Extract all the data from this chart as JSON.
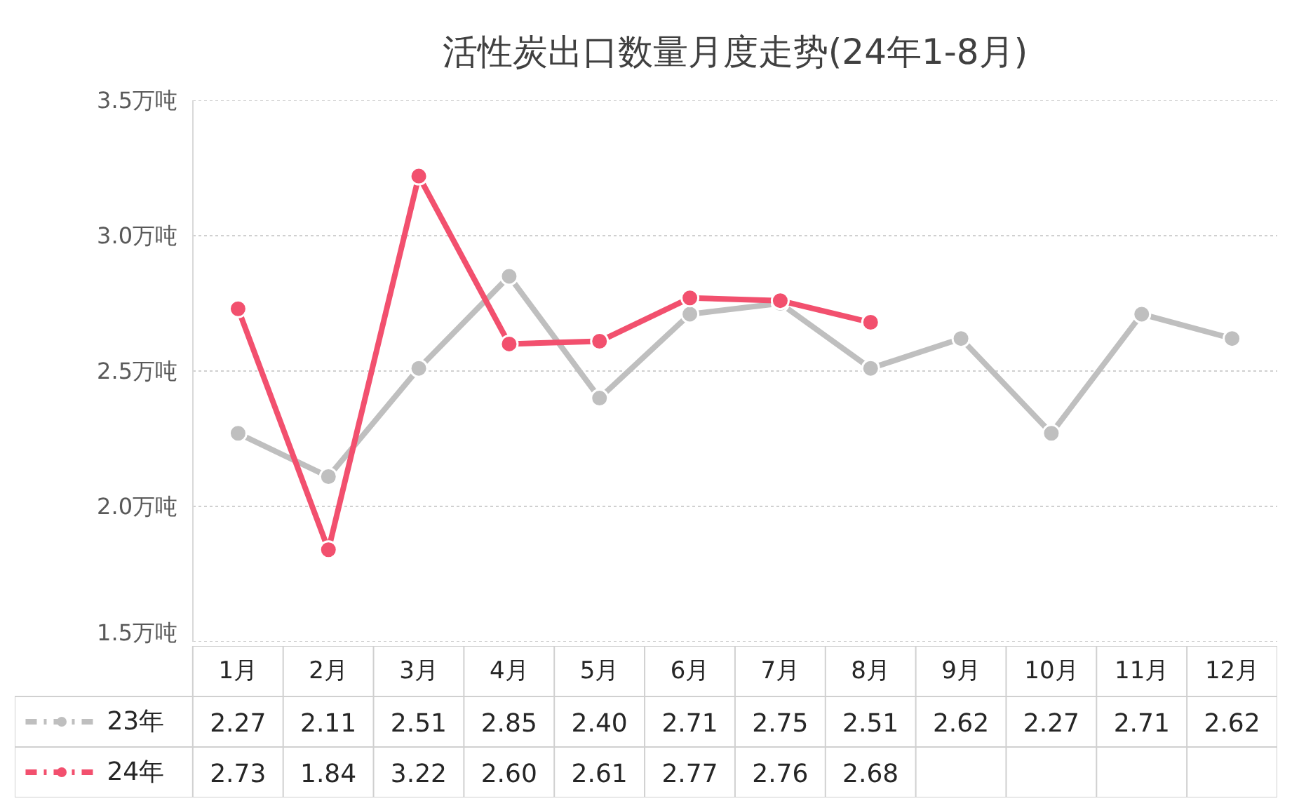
{
  "chart_data": {
    "type": "line",
    "title": "活性炭出口数量月度走势(24年1-8月)",
    "categories": [
      "1月",
      "2月",
      "3月",
      "4月",
      "5月",
      "6月",
      "7月",
      "8月",
      "9月",
      "10月",
      "11月",
      "12月"
    ],
    "series": [
      {
        "name": "23年",
        "color": "#bfbfbf",
        "values": [
          2.27,
          2.11,
          2.51,
          2.85,
          2.4,
          2.71,
          2.75,
          2.51,
          2.62,
          2.27,
          2.71,
          2.62
        ],
        "value_labels": [
          "2.27",
          "2.11",
          "2.51",
          "2.85",
          "2.40",
          "2.71",
          "2.75",
          "2.51",
          "2.62",
          "2.27",
          "2.71",
          "2.62"
        ]
      },
      {
        "name": "24年",
        "color": "#f2506e",
        "values": [
          2.73,
          1.84,
          3.22,
          2.6,
          2.61,
          2.77,
          2.76,
          2.68,
          null,
          null,
          null,
          null
        ],
        "value_labels": [
          "2.73",
          "1.84",
          "3.22",
          "2.60",
          "2.61",
          "2.77",
          "2.76",
          "2.68",
          null,
          null,
          null,
          null
        ]
      }
    ],
    "ylim": [
      1.5,
      3.5
    ],
    "yticks": [
      {
        "value": 1.5,
        "label": "1.5万吨"
      },
      {
        "value": 2.0,
        "label": "2.0万吨"
      },
      {
        "value": 2.5,
        "label": "2.5万吨"
      },
      {
        "value": 3.0,
        "label": "3.0万吨"
      },
      {
        "value": 3.5,
        "label": "3.5万吨"
      }
    ],
    "grid": "y",
    "legend": "bottom",
    "marker": "circle",
    "line_style": "solid"
  }
}
